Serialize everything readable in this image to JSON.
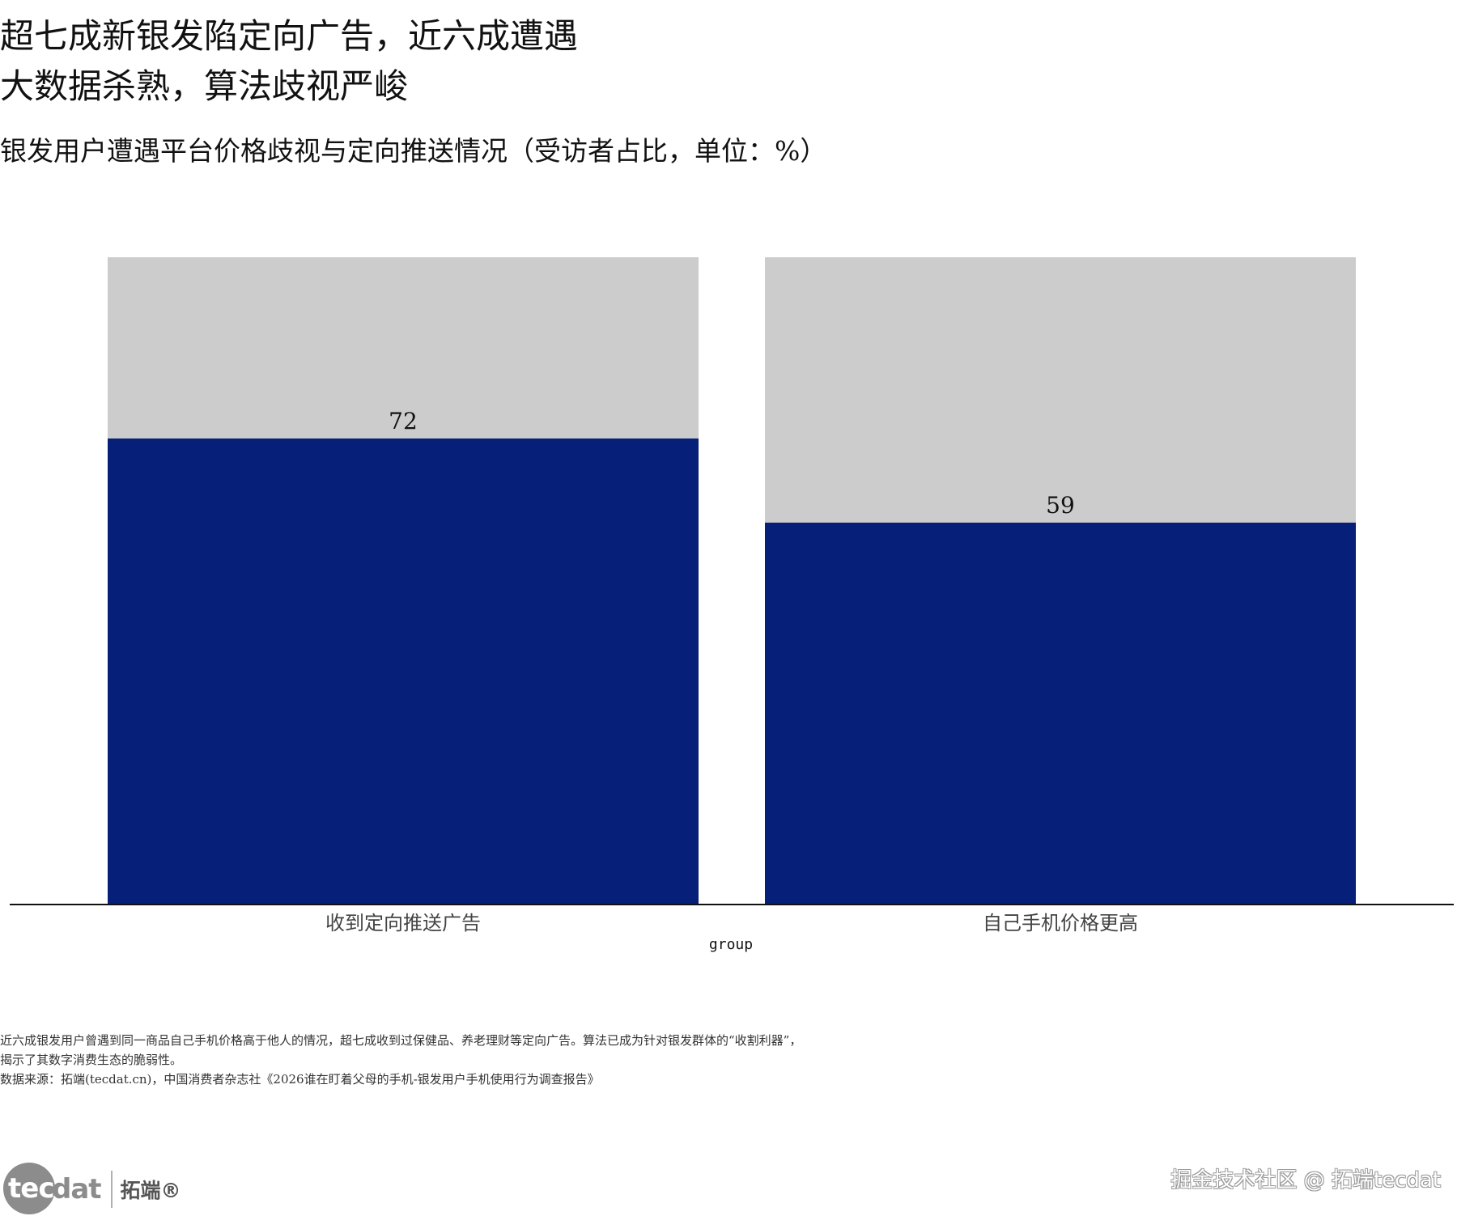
{
  "header": {
    "title_line1": "超七成新银发陷定向广告，近六成遭遇",
    "title_line2": "大数据杀熟，算法歧视严峻",
    "subtitle": "银发用户遭遇平台价格歧视与定向推送情况（受访者占比，单位：%）"
  },
  "chart_data": {
    "type": "bar",
    "stacked_background": true,
    "categories": [
      "收到定向推送广告",
      "自己手机价格更高"
    ],
    "values": [
      72,
      59
    ],
    "ylim": [
      0,
      100
    ],
    "xlabel": "group",
    "ylabel": "",
    "data_labels": [
      "72",
      "59"
    ],
    "grid": false,
    "colors": {
      "bar": "#061f78",
      "background_bar": "#cccccc",
      "axis": "#111111"
    }
  },
  "notes": {
    "line1": "近六成银发用户曾遇到同一商品自己手机价格高于他人的情况，超七成收到过保健品、养老理财等定向广告。算法已成为针对银发群体的“收割利器”，",
    "line2": "揭示了其数字消费生态的脆弱性。",
    "line3": "数据来源：拓端(tecdat.cn)，中国消费者杂志社《2026谁在盯着父母的手机-银发用户手机使用行为调查报告》"
  },
  "logo": {
    "part1": "tec",
    "part2": "dat",
    "cn": "拓端®"
  },
  "watermark": "掘金技术社区 @ 拓端tecdat"
}
